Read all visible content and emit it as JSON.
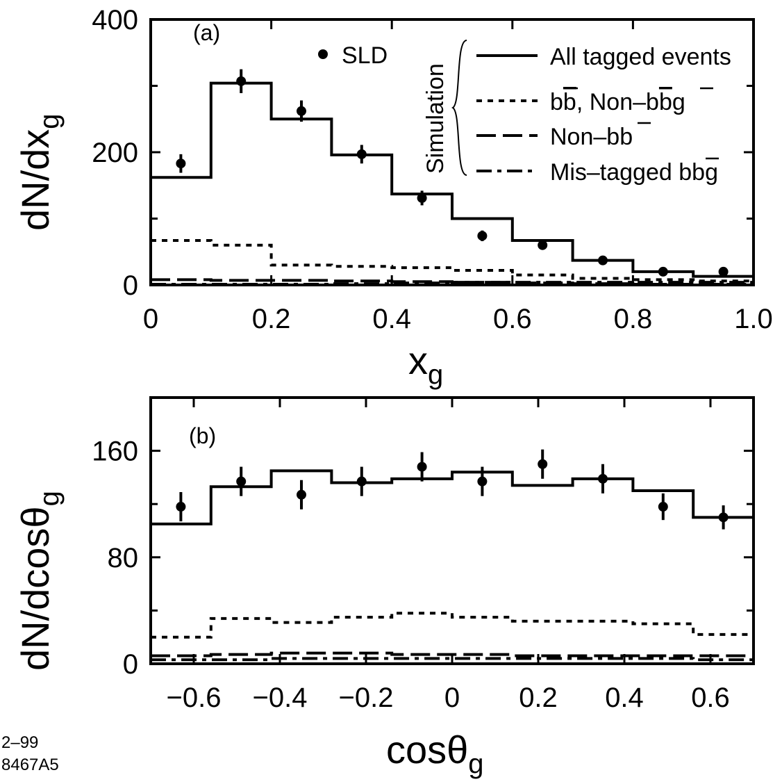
{
  "footer": {
    "line1": "2–99",
    "line2": "8467A5"
  },
  "legend": {
    "data_label": "SLD",
    "group_label": "Simulation",
    "entries": [
      {
        "label": "All tagged events",
        "style": "solid"
      },
      {
        "label": "bb, Non–bbg",
        "style": "dotted"
      },
      {
        "label": "Non–bb",
        "style": "dashed"
      },
      {
        "label": "Mis–tagged bbg",
        "style": "dashdot"
      }
    ]
  },
  "chart_data": [
    {
      "type": "line",
      "panel_label": "(a)",
      "xlabel": "x",
      "xlabel_sub": "g",
      "ylabel": "dN/dx",
      "ylabel_sub": "g",
      "xlim": [
        0,
        1.0
      ],
      "ylim": [
        0,
        400
      ],
      "x_ticks": [
        0,
        0.2,
        0.4,
        0.6,
        0.8,
        1.0
      ],
      "x_tick_labels": [
        "0",
        "0.2",
        "0.4",
        "0.6",
        "0.8",
        "1.0"
      ],
      "y_ticks": [
        0,
        200,
        400
      ],
      "y_tick_labels": [
        "0",
        "200",
        "400"
      ],
      "bin_edges": [
        0,
        0.1,
        0.2,
        0.3,
        0.4,
        0.5,
        0.6,
        0.7,
        0.8,
        0.9,
        1.0
      ],
      "series": [
        {
          "name": "SLD",
          "kind": "points",
          "x": [
            0.05,
            0.15,
            0.25,
            0.35,
            0.45,
            0.55,
            0.65,
            0.75,
            0.85,
            0.95
          ],
          "y": [
            183,
            307,
            262,
            197,
            131,
            74,
            60,
            37,
            20,
            20
          ],
          "err": [
            14,
            18,
            16,
            14,
            11,
            8,
            7,
            6,
            4,
            4
          ]
        },
        {
          "name": "All tagged events",
          "kind": "histogram",
          "values": [
            162,
            304,
            250,
            196,
            137,
            100,
            67,
            37,
            20,
            13
          ]
        },
        {
          "name": "bb, Non–bbg",
          "kind": "histogram",
          "values": [
            67,
            60,
            30,
            28,
            26,
            22,
            15,
            10,
            8,
            6
          ]
        },
        {
          "name": "Non–bb",
          "kind": "histogram",
          "values": [
            8,
            7,
            7,
            6,
            5,
            4,
            3,
            2,
            1,
            1
          ]
        },
        {
          "name": "Mis–tagged bbg",
          "kind": "histogram",
          "values": [
            1,
            1,
            1,
            2,
            3,
            4,
            4,
            4,
            4,
            4
          ]
        }
      ]
    },
    {
      "type": "line",
      "panel_label": "(b)",
      "xlabel": "cosθ",
      "xlabel_sub": "g",
      "ylabel": "dN/dcosθ",
      "ylabel_sub": "g",
      "xlim": [
        -0.7,
        0.7
      ],
      "ylim": [
        0,
        200
      ],
      "x_ticks": [
        -0.6,
        -0.4,
        -0.2,
        0,
        0.2,
        0.4,
        0.6
      ],
      "x_tick_labels": [
        "−0.6",
        "−0.4",
        "−0.2",
        "0",
        "0.2",
        "0.4",
        "0.6"
      ],
      "y_ticks": [
        0,
        80,
        160
      ],
      "y_tick_labels": [
        "0",
        "80",
        "160"
      ],
      "bin_edges": [
        -0.7,
        -0.56,
        -0.42,
        -0.28,
        -0.14,
        0,
        0.14,
        0.28,
        0.42,
        0.56,
        0.7
      ],
      "series": [
        {
          "name": "SLD",
          "kind": "points",
          "x": [
            -0.63,
            -0.49,
            -0.35,
            -0.21,
            -0.07,
            0.07,
            0.21,
            0.35,
            0.49,
            0.63
          ],
          "y": [
            118,
            137,
            127,
            137,
            148,
            137,
            150,
            139,
            118,
            110
          ],
          "err": [
            11,
            11,
            11,
            11,
            11,
            11,
            11,
            11,
            10,
            9
          ]
        },
        {
          "name": "All tagged events",
          "kind": "histogram",
          "values": [
            105,
            133,
            145,
            136,
            139,
            144,
            134,
            139,
            130,
            110
          ]
        },
        {
          "name": "bb, Non–bbg",
          "kind": "histogram",
          "values": [
            20,
            34,
            31,
            35,
            38,
            35,
            32,
            32,
            30,
            22
          ]
        },
        {
          "name": "Non–bb",
          "kind": "histogram",
          "values": [
            6,
            7,
            8,
            8,
            7,
            7,
            6,
            6,
            6,
            6
          ]
        },
        {
          "name": "Mis–tagged bbg",
          "kind": "histogram",
          "values": [
            3,
            3,
            4,
            4,
            4,
            4,
            4,
            4,
            4,
            3
          ]
        }
      ]
    }
  ]
}
